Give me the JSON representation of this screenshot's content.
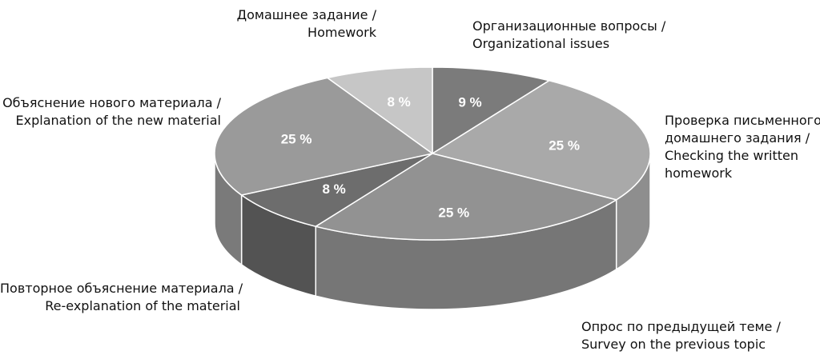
{
  "chart_data": {
    "type": "pie",
    "title": "",
    "slices": [
      {
        "ru": "Организационные вопросы /",
        "en": "Organizational issues",
        "value": 9,
        "label": "9 %",
        "color": "#7b7b7b",
        "side": "#5e5e5e"
      },
      {
        "ru": "Проверка письменного домашнего задания /",
        "en": "Checking the written homework",
        "value": 25,
        "label": "25 %",
        "color": "#a9a9a9",
        "side": "#8e8e8e"
      },
      {
        "ru": "Опрос по предыдущей теме /",
        "en": "Survey on the previous topic",
        "value": 25,
        "label": "25 %",
        "color": "#929292",
        "side": "#767676"
      },
      {
        "ru": "Повторное объяснение материала /",
        "en": "Re-explanation of the material",
        "value": 8,
        "label": "8 %",
        "color": "#6d6d6d",
        "side": "#535353"
      },
      {
        "ru": "Объяснение нового материала /",
        "en": "Explanation of the new material",
        "value": 25,
        "label": "25 %",
        "color": "#9a9a9a",
        "side": "#7a7a7a"
      },
      {
        "ru": "Домашнее задание /",
        "en": "Homework",
        "value": 8,
        "label": "8 %",
        "color": "#c6c6c6",
        "side": "#a8a8a8"
      }
    ],
    "legend": "callout-labels"
  },
  "labels": {
    "organizational": {
      "line1": "Организационные вопросы /",
      "line2": "Organizational issues"
    },
    "checking": {
      "line1": "Проверка письменного",
      "line2": "домашнего задания /",
      "line3": "Checking the written",
      "line4": "homework"
    },
    "survey": {
      "line1": "Опрос по предыдущей теме /",
      "line2": "Survey on the previous topic"
    },
    "reexplanation": {
      "line1": "Повторное объяснение материала /",
      "line2": "Re-explanation of the material"
    },
    "explanation": {
      "line1": "Объяснение нового материала /",
      "line2": "Explanation of the new material"
    },
    "homework": {
      "line1": "Домашнее задание /",
      "line2": "Homework"
    }
  }
}
